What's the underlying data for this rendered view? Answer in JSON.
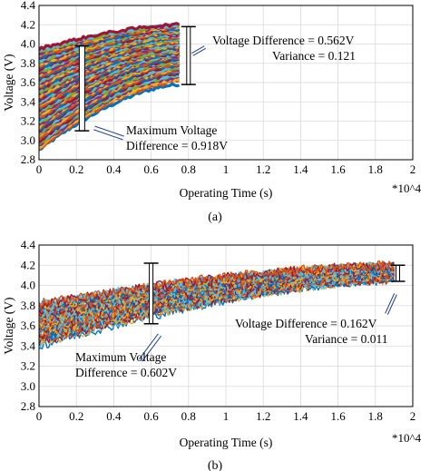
{
  "chart_data": [
    {
      "type": "line",
      "panel_label": "(a)",
      "xlabel": "Operating Time (s)",
      "ylabel": "Voltage (V)",
      "x_multiplier": "*10^4",
      "xlim": [
        0,
        2
      ],
      "ylim": [
        2.8,
        4.4
      ],
      "xticks": [
        "0",
        "0.2",
        "0.4",
        "0.6",
        "0.8",
        "1",
        "1.2",
        "1.4",
        "1.6",
        "1.8",
        "2"
      ],
      "yticks": [
        "2.8",
        "3.0",
        "3.2",
        "3.4",
        "3.6",
        "3.8",
        "4.0",
        "4.2",
        "4.4"
      ],
      "grid": true,
      "series_note": "many cell voltage traces, x from 0 to about 0.75, rising from about 2.9–3.9 V to about 3.6–4.2 V",
      "x_end": 0.75,
      "band_start": [
        2.9,
        3.95
      ],
      "band_end": [
        3.58,
        4.2
      ],
      "colors": [
        "#0072bd",
        "#d95319",
        "#edb120",
        "#7e2f8e",
        "#77ac30",
        "#4dbeee",
        "#a2142f"
      ],
      "annotations": [
        {
          "text_lines": [
            "Voltage Difference = 0.562V",
            "Variance = 0.121"
          ],
          "x": 0.8,
          "y_range": [
            3.58,
            4.18
          ]
        },
        {
          "text_lines": [
            "Maximum Voltage",
            "Difference = 0.918V"
          ],
          "x": 0.23,
          "y_range": [
            3.1,
            3.98
          ]
        }
      ]
    },
    {
      "type": "line",
      "panel_label": "(b)",
      "xlabel": "Operating Time (s)",
      "ylabel": "Voltage (V)",
      "x_multiplier": "*10^4",
      "xlim": [
        0,
        2
      ],
      "ylim": [
        2.8,
        4.4
      ],
      "xticks": [
        "0",
        "0.2",
        "0.4",
        "0.6",
        "0.8",
        "1",
        "1.2",
        "1.4",
        "1.6",
        "1.8",
        "2"
      ],
      "yticks": [
        "2.8",
        "3.0",
        "3.2",
        "3.4",
        "3.6",
        "3.8",
        "4.0",
        "4.2",
        "4.4"
      ],
      "grid": true,
      "series_note": "many cell voltage traces, x from 0 to about 1.9, rising from about 3.4–3.8 V to about 4.05–4.2 V",
      "x_end": 1.9,
      "band_start": [
        3.4,
        3.82
      ],
      "band_end": [
        4.05,
        4.2
      ],
      "colors": [
        "#0072bd",
        "#edb120",
        "#4dbeee",
        "#a2142f",
        "#d95319"
      ],
      "annotations": [
        {
          "text_lines": [
            "Voltage Difference = 0.162V",
            "Variance = 0.011"
          ],
          "x": 1.92,
          "y_range": [
            4.04,
            4.2
          ]
        },
        {
          "text_lines": [
            "Maximum Voltage",
            "Difference = 0.602V"
          ],
          "x": 0.6,
          "y_range": [
            3.62,
            4.22
          ]
        }
      ]
    }
  ]
}
